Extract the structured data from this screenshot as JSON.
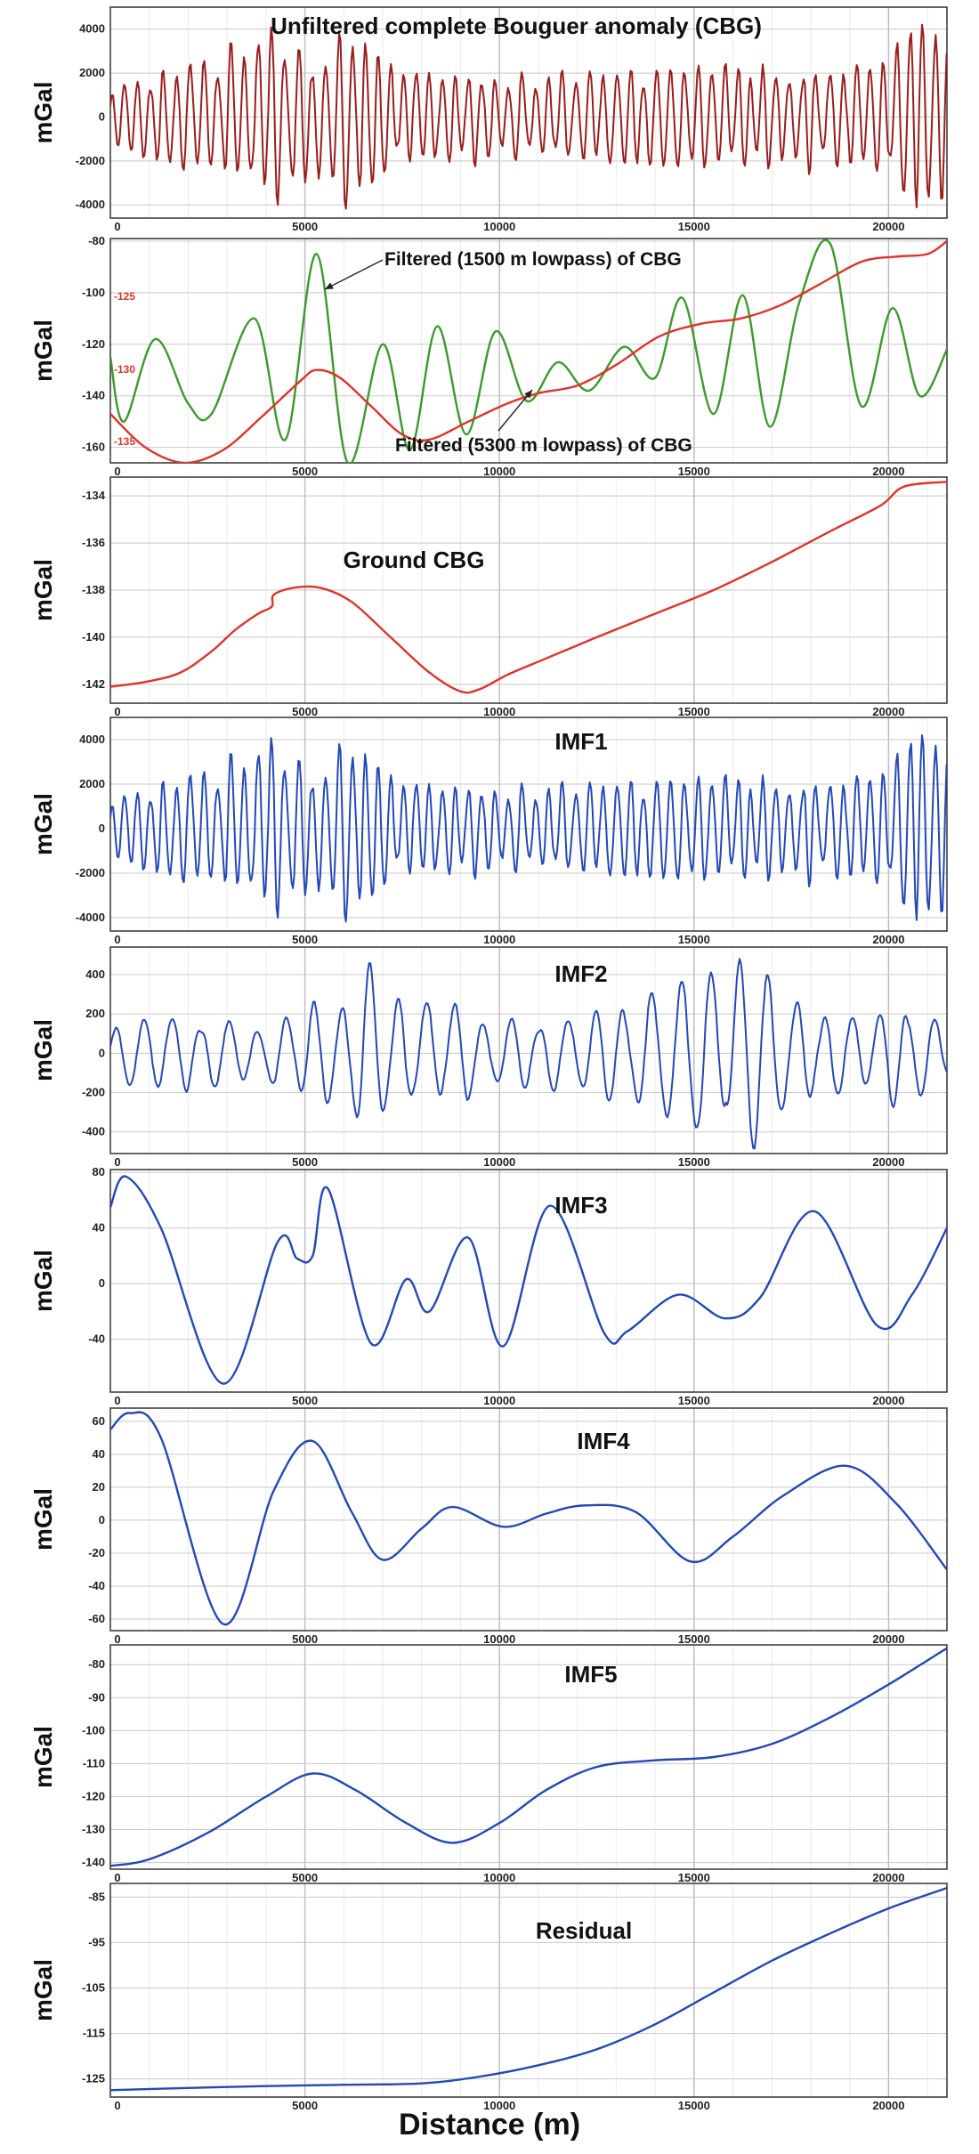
{
  "xlabel": "Distance (m)",
  "chart_data": [
    {
      "type": "line",
      "title": "Unfiltered complete Bouguer anomaly (CBG)",
      "ylabel": "mGal",
      "xlim": [
        0,
        21500
      ],
      "ylim": [
        -4600,
        5000
      ],
      "yticks": [
        -4000,
        -2000,
        0,
        2000,
        4000
      ],
      "xticks": [
        0,
        5000,
        10000,
        15000,
        20000
      ],
      "grid": true,
      "series": [
        {
          "color": "#9b1c1c",
          "shape": "oscillation",
          "x": [
            0,
            21500
          ],
          "amplitude": [
            [
              0,
              1200
            ],
            [
              1500,
              2400
            ],
            [
              2800,
              3200
            ],
            [
              4100,
              4700
            ],
            [
              5500,
              2600
            ],
            [
              6000,
              4300
            ],
            [
              7500,
              2000
            ],
            [
              9500,
              2300
            ],
            [
              11500,
              2200
            ],
            [
              13500,
              2200
            ],
            [
              15500,
              2400
            ],
            [
              17000,
              2700
            ],
            [
              18500,
              2600
            ],
            [
              19800,
              2500
            ],
            [
              20500,
              4000
            ],
            [
              21200,
              4500
            ],
            [
              21500,
              3500
            ]
          ],
          "period_m": 330
        }
      ]
    },
    {
      "type": "line",
      "ylabel": "mGal",
      "xlim": [
        0,
        21500
      ],
      "ylim": [
        -166,
        -79
      ],
      "yticks": [
        -160,
        -140,
        -120,
        -100,
        -80
      ],
      "xticks": [
        0,
        5000,
        10000,
        15000,
        20000
      ],
      "secondary_yticks": [
        -125,
        -130,
        -135
      ],
      "grid": true,
      "annotations": [
        {
          "text": "Filtered (1500 m lowpass) of CBG"
        },
        {
          "text": "Filtered (5300 m lowpass) of CBG"
        }
      ],
      "series": [
        {
          "color": "#3a9a2a",
          "x": [
            0,
            350,
            1150,
            2000,
            2600,
            3700,
            4500,
            5300,
            6100,
            7000,
            7700,
            8400,
            9150,
            9900,
            10700,
            11500,
            12300,
            13200,
            14000,
            14700,
            15500,
            16250,
            16950,
            17700,
            18500,
            19300,
            20100,
            20800,
            21500
          ],
          "y": [
            -125,
            -150,
            -118,
            -143,
            -147,
            -110,
            -157,
            -85,
            -166,
            -120,
            -161,
            -113,
            -155,
            -115,
            -142,
            -127,
            -138,
            -121,
            -133,
            -102,
            -147,
            -101,
            -152,
            -104,
            -81,
            -144,
            -106,
            -140,
            -122
          ]
        },
        {
          "color": "#e0322a",
          "x": [
            0,
            900,
            1900,
            2900,
            3900,
            4900,
            5300,
            5900,
            6700,
            7500,
            8200,
            9200,
            10200,
            11000,
            12000,
            13000,
            14100,
            15200,
            16200,
            17200,
            18200,
            19300,
            20200,
            21000,
            21500
          ],
          "y": [
            -147,
            -160,
            -166,
            -161,
            -148,
            -134,
            -130,
            -133,
            -144,
            -155,
            -157,
            -150,
            -143,
            -139,
            -136,
            -128,
            -117,
            -112,
            -110,
            -105,
            -97,
            -88,
            -86,
            -85,
            -80
          ]
        }
      ]
    },
    {
      "type": "line",
      "title": "Ground CBG",
      "ylabel": "mGal",
      "xlim": [
        0,
        21500
      ],
      "ylim": [
        -142.8,
        -133.2
      ],
      "yticks": [
        -142,
        -140,
        -138,
        -136,
        -134
      ],
      "xticks": [
        0,
        5000,
        10000,
        15000,
        20000
      ],
      "grid": true,
      "series": [
        {
          "color": "#e0322a",
          "x": [
            0,
            900,
            1800,
            2600,
            3200,
            3800,
            4150,
            4200,
            4700,
            5400,
            6200,
            7200,
            8200,
            9000,
            9500,
            10200,
            11200,
            12500,
            14000,
            15500,
            17000,
            18500,
            19800,
            20400,
            21500
          ],
          "y": [
            -142.1,
            -141.9,
            -141.5,
            -140.6,
            -139.7,
            -139.0,
            -138.7,
            -138.2,
            -137.9,
            -137.9,
            -138.5,
            -140.0,
            -141.5,
            -142.3,
            -142.2,
            -141.6,
            -140.9,
            -140.0,
            -139.0,
            -138.0,
            -136.8,
            -135.5,
            -134.4,
            -133.6,
            -133.4
          ]
        }
      ]
    },
    {
      "type": "line",
      "title": "IMF1",
      "ylabel": "mGal",
      "xlim": [
        0,
        21500
      ],
      "ylim": [
        -4600,
        5000
      ],
      "yticks": [
        -4000,
        -2000,
        0,
        2000,
        4000
      ],
      "xticks": [
        0,
        5000,
        10000,
        15000,
        20000
      ],
      "grid": true,
      "series": [
        {
          "color": "#2348b8",
          "shape": "oscillation",
          "x": [
            0,
            21500
          ],
          "amplitude": [
            [
              0,
              1200
            ],
            [
              1500,
              2400
            ],
            [
              2800,
              3200
            ],
            [
              4100,
              4700
            ],
            [
              5500,
              2600
            ],
            [
              6000,
              4300
            ],
            [
              7500,
              2000
            ],
            [
              9500,
              2300
            ],
            [
              11500,
              2200
            ],
            [
              13500,
              2200
            ],
            [
              15500,
              2400
            ],
            [
              17000,
              2700
            ],
            [
              18500,
              2600
            ],
            [
              19800,
              2500
            ],
            [
              20500,
              4000
            ],
            [
              21200,
              4500
            ],
            [
              21500,
              3500
            ]
          ],
          "period_m": 330
        }
      ]
    },
    {
      "type": "line",
      "title": "IMF2",
      "ylabel": "mGal",
      "xlim": [
        0,
        21500
      ],
      "ylim": [
        -510,
        540
      ],
      "yticks": [
        -400,
        -200,
        0,
        200,
        400
      ],
      "xticks": [
        0,
        5000,
        10000,
        15000,
        20000
      ],
      "grid": true,
      "series": [
        {
          "color": "#2348b8",
          "shape": "oscillation",
          "x": [
            0,
            21500
          ],
          "amplitude": [
            [
              0,
              150
            ],
            [
              2000,
              200
            ],
            [
              4000,
              140
            ],
            [
              5200,
              300
            ],
            [
              6500,
              480
            ],
            [
              8000,
              350
            ],
            [
              10000,
              200
            ],
            [
              12000,
              190
            ],
            [
              14000,
              320
            ],
            [
              15500,
              420
            ],
            [
              16400,
              520
            ],
            [
              17500,
              280
            ],
            [
              19000,
              200
            ],
            [
              20500,
              300
            ],
            [
              21500,
              200
            ]
          ],
          "period_m": 700
        }
      ]
    },
    {
      "type": "line",
      "title": "IMF3",
      "ylabel": "mGal",
      "xlim": [
        0,
        21500
      ],
      "ylim": [
        -78,
        82
      ],
      "yticks": [
        -40,
        0,
        40,
        80
      ],
      "xticks": [
        0,
        5000,
        10000,
        15000,
        20000
      ],
      "grid": true,
      "series": [
        {
          "color": "#2348b8",
          "x": [
            0,
            400,
            1300,
            2900,
            4300,
            4800,
            5200,
            5600,
            6700,
            7600,
            8200,
            9200,
            10100,
            11300,
            12700,
            13300,
            14600,
            15800,
            16700,
            18100,
            19700,
            20600,
            21500
          ],
          "y": [
            55,
            77,
            40,
            -72,
            30,
            18,
            20,
            68,
            -43,
            3,
            -20,
            33,
            -45,
            56,
            -36,
            -34,
            -8,
            -25,
            -10,
            52,
            -30,
            -8,
            40
          ]
        }
      ]
    },
    {
      "type": "line",
      "title": "IMF4",
      "ylabel": "mGal",
      "xlim": [
        0,
        21500
      ],
      "ylim": [
        -67,
        68
      ],
      "yticks": [
        -60,
        -40,
        -20,
        0,
        20,
        40,
        60
      ],
      "xticks": [
        0,
        5000,
        10000,
        15000,
        20000
      ],
      "grid": true,
      "series": [
        {
          "color": "#2348b8",
          "x": [
            0,
            500,
            1300,
            2900,
            4200,
            5200,
            6200,
            7000,
            8000,
            8800,
            10100,
            11200,
            12200,
            13500,
            14900,
            16000,
            17300,
            18900,
            20200,
            21500
          ],
          "y": [
            55,
            65,
            50,
            -63,
            18,
            48,
            5,
            -24,
            -5,
            8,
            -4,
            4,
            9,
            5,
            -25,
            -10,
            15,
            33,
            10,
            -30
          ]
        }
      ]
    },
    {
      "type": "line",
      "title": "IMF5",
      "ylabel": "mGal",
      "xlim": [
        0,
        21500
      ],
      "ylim": [
        -142,
        -74
      ],
      "yticks": [
        -140,
        -130,
        -120,
        -110,
        -100,
        -90,
        -80
      ],
      "xticks": [
        0,
        5000,
        10000,
        15000,
        20000
      ],
      "grid": true,
      "series": [
        {
          "color": "#2348b8",
          "x": [
            0,
            1000,
            2500,
            4000,
            5200,
            6300,
            7600,
            8800,
            10000,
            11200,
            12500,
            14000,
            15500,
            17000,
            18500,
            20000,
            21500
          ],
          "y": [
            -141,
            -139,
            -131,
            -120,
            -113,
            -118,
            -128,
            -134,
            -128,
            -118,
            -111,
            -109,
            -108,
            -104,
            -96,
            -86,
            -75
          ]
        }
      ]
    },
    {
      "type": "line",
      "title": "Residual",
      "ylabel": "mGal",
      "xlim": [
        0,
        21500
      ],
      "ylim": [
        -129,
        -82
      ],
      "yticks": [
        -125,
        -115,
        -105,
        -95,
        -85
      ],
      "xticks": [
        0,
        5000,
        10000,
        15000,
        20000
      ],
      "grid": true,
      "series": [
        {
          "color": "#2348b8",
          "x": [
            0,
            2000,
            4000,
            6000,
            8000,
            9500,
            11000,
            12500,
            14000,
            15500,
            17000,
            18500,
            20000,
            21500
          ],
          "y": [
            -127.5,
            -127.0,
            -126.6,
            -126.3,
            -126.0,
            -124.5,
            -122.0,
            -118.5,
            -113.0,
            -106.0,
            -99.0,
            -93.0,
            -87.5,
            -83.0
          ]
        }
      ]
    }
  ]
}
